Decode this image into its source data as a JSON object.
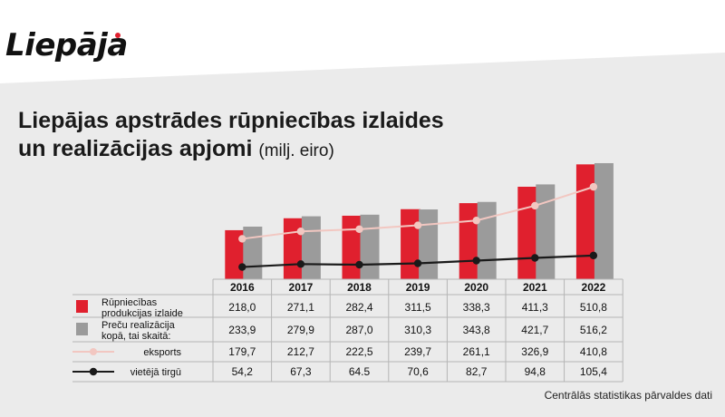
{
  "logo": {
    "text": "Liepāja"
  },
  "title": {
    "line1": "Liepājas apstrādes rūpniecības izlaides",
    "line2": "un realizācijas apjomi",
    "unit": "(milj. eiro)"
  },
  "source": "Centrālās statistikas pārvaldes dati",
  "colors": {
    "bar1": "#e0202e",
    "bar2": "#9b9b9b",
    "export": "#f2c7c1",
    "local": "#1a1a1a",
    "background": "#ebebeb"
  },
  "chart_data": {
    "type": "bar",
    "categories": [
      "2016",
      "2017",
      "2018",
      "2019",
      "2020",
      "2021",
      "2022"
    ],
    "series": [
      {
        "name": "Rūpniecības produkcijas izlaide",
        "kind": "bar",
        "color": "#e0202e",
        "labels": [
          "218,0",
          "271,1",
          "282,4",
          "311,5",
          "338,3",
          "411,3",
          "510,8"
        ],
        "values": [
          218.0,
          271.1,
          282.4,
          311.5,
          338.3,
          411.3,
          510.8
        ]
      },
      {
        "name": "Preču realizācija kopā, tai skaitā:",
        "kind": "bar",
        "color": "#9b9b9b",
        "labels": [
          "233,9",
          "279,9",
          "287,0",
          "310,3",
          "343,8",
          "421,7",
          "516,2"
        ],
        "values": [
          233.9,
          279.9,
          287.0,
          310.3,
          343.8,
          421.7,
          516.2
        ]
      },
      {
        "name": "eksports",
        "kind": "line",
        "color": "#f2c7c1",
        "labels": [
          "179,7",
          "212,7",
          "222,5",
          "239,7",
          "261,1",
          "326,9",
          "410,8"
        ],
        "values": [
          179.7,
          212.7,
          222.5,
          239.7,
          261.1,
          326.9,
          410.8
        ]
      },
      {
        "name": "vietējā tirgū",
        "kind": "line",
        "color": "#1a1a1a",
        "labels": [
          "54,2",
          "67,3",
          "64.5",
          "70,6",
          "82,7",
          "94,8",
          "105,4"
        ],
        "values": [
          54.2,
          67.3,
          64.5,
          70.6,
          82.7,
          94.8,
          105.4
        ]
      }
    ]
  }
}
